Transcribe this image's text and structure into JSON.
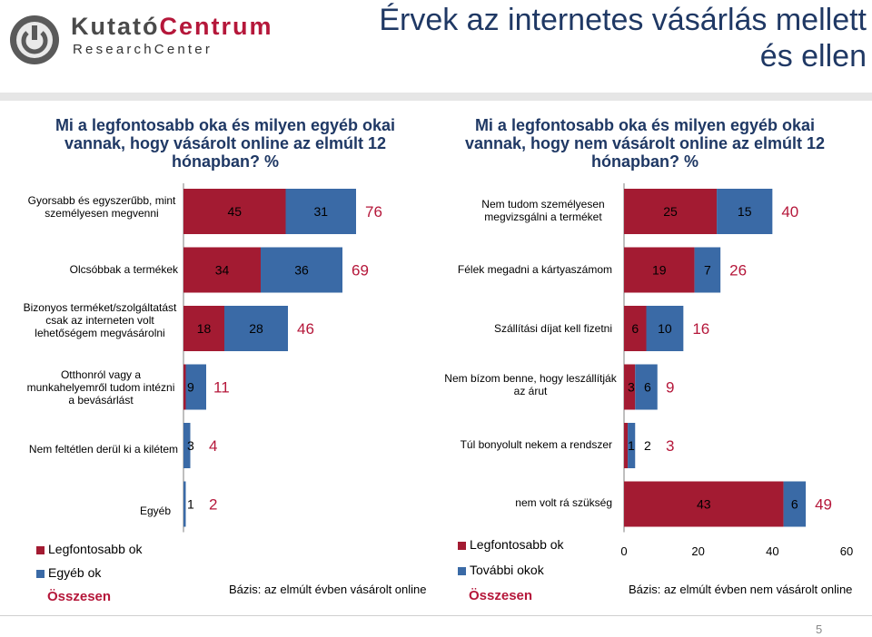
{
  "header": {
    "logo_line1_part1": "Kutató",
    "logo_line1_part2": "Centrum",
    "logo_line2": "ResearchCenter",
    "title": "Érvek az internetes vásárlás mellett és ellen"
  },
  "left_panel": {
    "question": "Mi a legfontosabb oka és milyen egyéb okai vannak, hogy vásárolt online az elmúlt 12 hónapban? %",
    "legend": {
      "main": "Legfontosabb ok",
      "other": "Egyéb ok",
      "total": "Összesen"
    },
    "basis": "Bázis: az elmúlt évben vásárolt online"
  },
  "right_panel": {
    "question": "Mi a legfontosabb oka és milyen egyéb okai vannak, hogy nem vásárolt online az elmúlt 12 hónapban? %",
    "legend": {
      "main": "Legfontosabb ok",
      "other": "További okok",
      "total": "Összesen"
    },
    "basis": "Bázis: az elmúlt évben nem vásárolt online",
    "axis_ticks": [
      "0",
      "20",
      "40",
      "60"
    ]
  },
  "colors": {
    "main": "#a31b32",
    "other": "#3a6aa6",
    "total_text": "#b5173a",
    "title": "#1f3864"
  },
  "chart_data": [
    {
      "type": "bar",
      "orientation": "horizontal",
      "stacked": true,
      "categories": [
        "Gyorsabb és egyszerűbb, mint személyesen megvenni",
        "Olcsóbbak a termékek",
        "Bizonyos terméket/szolgáltatást csak az interneten volt lehetőségem megvásárolni",
        "Otthonról vagy a munkahelyemről tudom intézni a bevásárlást",
        "Nem feltétlen derül ki a kilétem",
        "Egyéb"
      ],
      "series": [
        {
          "name": "Legfontosabb ok",
          "values": [
            45,
            34,
            18,
            1,
            0,
            0
          ]
        },
        {
          "name": "Egyéb ok",
          "values": [
            31,
            36,
            28,
            9,
            3,
            1
          ]
        }
      ],
      "value_labels_main": [
        "45",
        "34",
        "18",
        "",
        "",
        ""
      ],
      "value_labels_other": [
        "31",
        "36",
        "28",
        "9",
        "3",
        "1"
      ],
      "totals": [
        76,
        69,
        46,
        11,
        4,
        2
      ],
      "xlim": [
        0,
        100
      ]
    },
    {
      "type": "bar",
      "orientation": "horizontal",
      "stacked": true,
      "categories": [
        "Nem tudom személyesen megvizsgálni a terméket",
        "Félek megadni a kártyaszámom",
        "Szállítási díjat kell fizetni",
        "Nem bízom benne, hogy leszállítják az árut",
        "Túl bonyolult nekem a rendszer",
        "nem volt rá szükség"
      ],
      "series": [
        {
          "name": "Legfontosabb ok",
          "values": [
            25,
            19,
            6,
            3,
            1,
            43
          ]
        },
        {
          "name": "További okok",
          "values": [
            15,
            7,
            10,
            6,
            2,
            6
          ]
        }
      ],
      "value_labels_main": [
        "25",
        "19",
        "6",
        "3",
        "1",
        "43"
      ],
      "value_labels_other": [
        "15",
        "7",
        "10",
        "6",
        "2",
        "6"
      ],
      "totals": [
        40,
        26,
        16,
        9,
        3,
        49
      ],
      "xlim": [
        0,
        60
      ]
    }
  ]
}
